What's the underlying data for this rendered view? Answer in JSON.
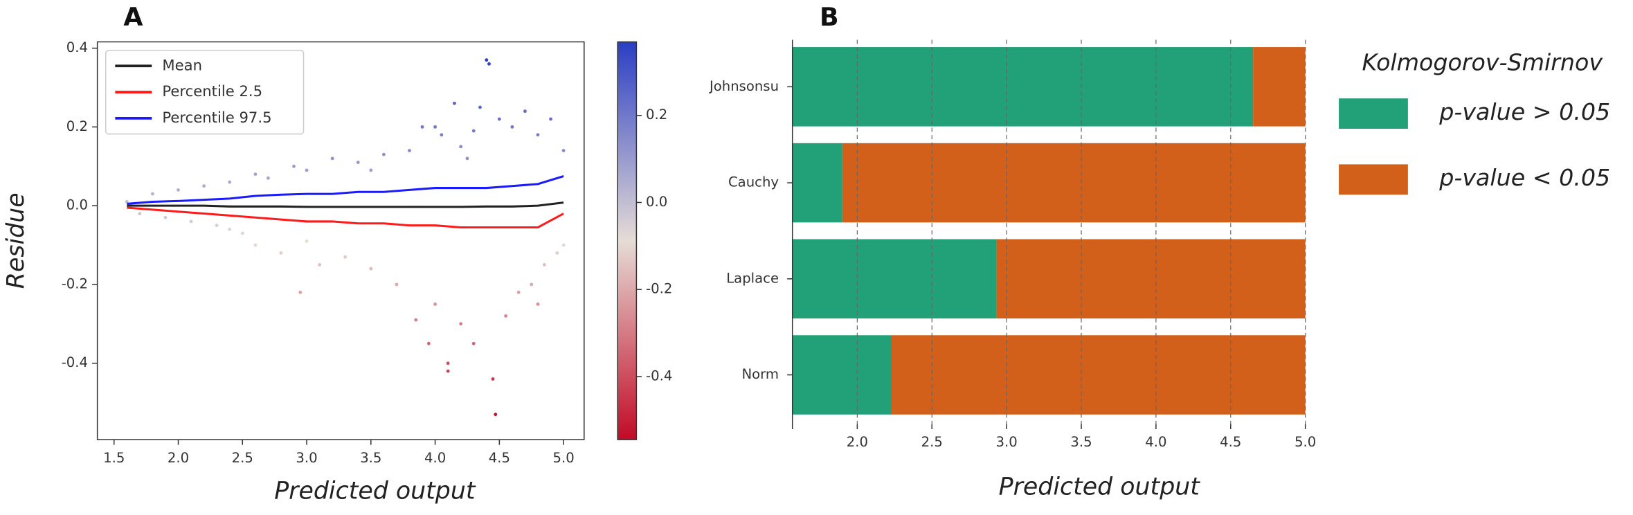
{
  "chart_data": [
    {
      "type": "scatter",
      "panel": "A",
      "ylabel": "Residue",
      "xlabel": "Predicted output",
      "xlim": [
        1.37,
        5.16
      ],
      "xticks": [
        1.5,
        {
          "value": 2,
          "label": "2.0"
        },
        2.5,
        {
          "value": 3,
          "label": "3.0"
        },
        3.5,
        {
          "value": 4,
          "label": "4.0"
        },
        4.5,
        {
          "value": 5,
          "label": "5.0"
        }
      ],
      "ylim": [
        -0.594,
        0.416
      ],
      "yticks": [
        -0.4,
        -0.2,
        {
          "value": 0,
          "label": "0.0"
        },
        0.2,
        0.4
      ],
      "points": {
        "x": [
          1.6,
          1.7,
          1.8,
          1.9,
          2.0,
          2.1,
          2.2,
          2.3,
          2.4,
          2.5,
          2.6,
          2.6,
          2.7,
          2.8,
          2.9,
          2.95,
          3.0,
          3.1,
          3.2,
          3.3,
          3.4,
          3.5,
          3.6,
          3.7,
          3.8,
          3.85,
          3.9,
          4.0,
          4.05,
          4.1,
          4.1,
          4.15,
          4.2,
          4.25,
          4.3,
          4.35,
          4.4,
          4.42,
          4.45,
          4.47,
          4.5,
          4.55,
          4.6,
          4.65,
          4.7,
          4.75,
          4.8,
          4.85,
          4.9,
          4.95,
          5.0,
          5.0,
          4.3,
          4.0,
          3.95,
          4.2,
          3.5,
          3.0,
          2.4,
          4.8
        ],
        "y": [
          0.01,
          -0.02,
          0.03,
          -0.03,
          0.04,
          -0.04,
          0.05,
          -0.05,
          0.06,
          -0.07,
          0.08,
          -0.1,
          0.07,
          -0.12,
          0.1,
          -0.22,
          0.09,
          -0.15,
          0.12,
          -0.13,
          0.11,
          -0.16,
          0.13,
          -0.2,
          0.14,
          -0.29,
          0.2,
          -0.25,
          0.18,
          -0.4,
          -0.42,
          0.26,
          -0.3,
          0.12,
          -0.35,
          0.25,
          0.37,
          0.36,
          -0.44,
          -0.53,
          0.22,
          -0.28,
          0.2,
          -0.22,
          0.24,
          -0.2,
          0.18,
          -0.15,
          0.22,
          -0.12,
          0.14,
          -0.1,
          0.19,
          0.2,
          -0.35,
          0.15,
          0.09,
          -0.09,
          -0.06,
          -0.25
        ]
      },
      "x": [
        1.6,
        1.8,
        2.0,
        2.2,
        2.4,
        2.6,
        2.8,
        3.0,
        3.2,
        3.4,
        3.6,
        3.8,
        4.0,
        4.2,
        4.4,
        4.6,
        4.8,
        5.0
      ],
      "series": [
        {
          "name": "Mean",
          "color": "#222222",
          "values": [
            0,
            0,
            0,
            0,
            -0.002,
            -0.002,
            -0.002,
            -0.003,
            -0.003,
            -0.003,
            -0.003,
            -0.003,
            -0.003,
            -0.003,
            -0.002,
            -0.002,
            0,
            0.008
          ]
        },
        {
          "name": "Percentile 2.5",
          "color": "#ff1a1a",
          "values": [
            -0.005,
            -0.01,
            -0.015,
            -0.02,
            -0.025,
            -0.03,
            -0.035,
            -0.04,
            -0.04,
            -0.045,
            -0.045,
            -0.05,
            -0.05,
            -0.055,
            -0.055,
            -0.055,
            -0.055,
            -0.02
          ]
        },
        {
          "name": "Percentile 97.5",
          "color": "#1a1aff",
          "values": [
            0.005,
            0.01,
            0.012,
            0.015,
            0.018,
            0.025,
            0.028,
            0.03,
            0.03,
            0.035,
            0.035,
            0.04,
            0.045,
            0.045,
            0.045,
            0.05,
            0.055,
            0.075
          ]
        }
      ],
      "colorbar": {
        "lim": [
          -0.545,
          0.369
        ],
        "ticks": [
          -0.4,
          -0.2,
          {
            "value": 0,
            "label": "0.0"
          },
          0.2
        ],
        "colors": [
          "#c20a26",
          "#e6dcd6",
          "#2b3ec4"
        ]
      }
    },
    {
      "type": "bar",
      "orientation": "horizontal",
      "panel": "B",
      "xlabel": "Predicted output",
      "xlim": [
        1.566,
        5.0
      ],
      "xticks": [
        {
          "value": 2,
          "label": "2.0"
        },
        2.5,
        {
          "value": 3,
          "label": "3.0"
        },
        3.5,
        {
          "value": 4,
          "label": "4.0"
        },
        4.5,
        {
          "value": 5,
          "label": "5.0"
        }
      ],
      "grid": true,
      "legend_title": "Kolmogorov-Smirnov",
      "legend": "right",
      "categories": [
        "Johnsonsu",
        "Cauchy",
        "Laplace",
        "Norm"
      ],
      "series": [
        {
          "name": "p-value > 0.05",
          "color": "#22a077",
          "values": [
            4.65,
            1.9,
            2.93,
            2.23
          ]
        },
        {
          "name": "p-value < 0.05",
          "color": "#d2601a",
          "values": [
            5.0,
            5.0,
            5.0,
            5.0
          ]
        }
      ]
    }
  ]
}
